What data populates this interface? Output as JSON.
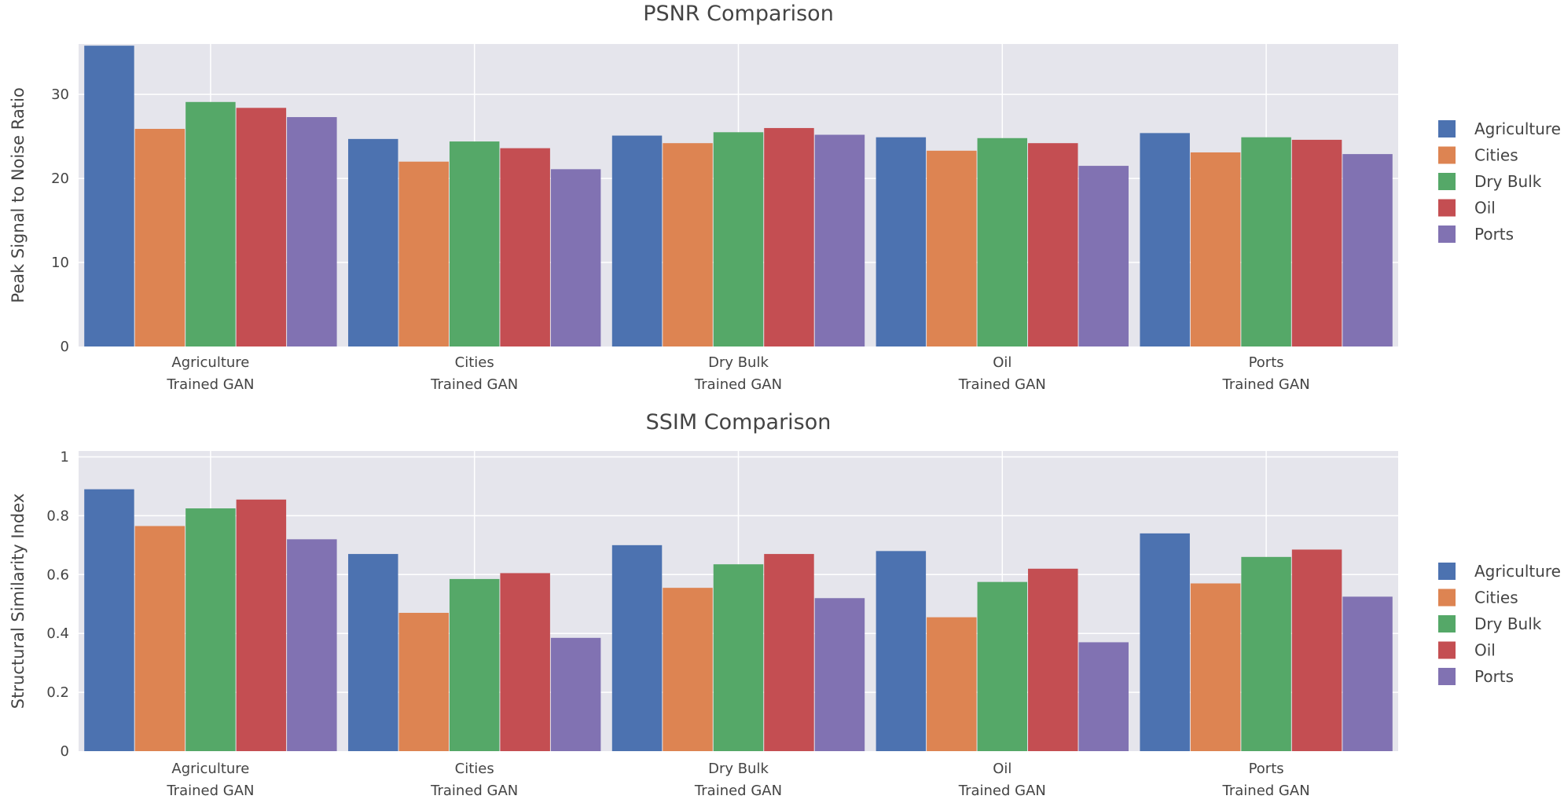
{
  "chart_data": [
    {
      "type": "bar",
      "title": "PSNR Comparison",
      "xlabel": "",
      "ylabel": "Peak Signal to Noise Ratio",
      "ylim": [
        0,
        36
      ],
      "yticks": [
        0,
        10,
        20,
        30
      ],
      "grid": true,
      "legend_position": "right",
      "categories": [
        [
          "Agriculture",
          "Trained GAN"
        ],
        [
          "Cities",
          "Trained GAN"
        ],
        [
          "Dry Bulk",
          "Trained GAN"
        ],
        [
          "Oil",
          "Trained GAN"
        ],
        [
          "Ports",
          "Trained GAN"
        ]
      ],
      "series": [
        {
          "name": "Agriculture",
          "color": "#4c72b0",
          "values": [
            35.8,
            24.7,
            25.1,
            24.9,
            25.4
          ]
        },
        {
          "name": "Cities",
          "color": "#dd8452",
          "values": [
            25.9,
            22.0,
            24.2,
            23.3,
            23.1
          ]
        },
        {
          "name": "Dry Bulk",
          "color": "#55a868",
          "values": [
            29.1,
            24.4,
            25.5,
            24.8,
            24.9
          ]
        },
        {
          "name": "Oil",
          "color": "#c44e52",
          "values": [
            28.4,
            23.6,
            26.0,
            24.2,
            24.6
          ]
        },
        {
          "name": "Ports",
          "color": "#8172b2",
          "values": [
            27.3,
            21.1,
            25.2,
            21.5,
            22.9
          ]
        }
      ]
    },
    {
      "type": "bar",
      "title": "SSIM Comparison",
      "xlabel": "",
      "ylabel": "Structural Similarity Index",
      "ylim": [
        0,
        1.02
      ],
      "yticks": [
        0,
        0.2,
        0.4,
        0.6,
        0.8,
        1
      ],
      "ytick_labels": [
        "0",
        "0.2",
        "0.4",
        "0.6",
        "0.8",
        "1"
      ],
      "grid": true,
      "legend_position": "right",
      "categories": [
        [
          "Agriculture",
          "Trained GAN"
        ],
        [
          "Cities",
          "Trained GAN"
        ],
        [
          "Dry Bulk",
          "Trained GAN"
        ],
        [
          "Oil",
          "Trained GAN"
        ],
        [
          "Ports",
          "Trained GAN"
        ]
      ],
      "series": [
        {
          "name": "Agriculture",
          "color": "#4c72b0",
          "values": [
            0.89,
            0.67,
            0.7,
            0.68,
            0.74
          ]
        },
        {
          "name": "Cities",
          "color": "#dd8452",
          "values": [
            0.765,
            0.47,
            0.555,
            0.455,
            0.57
          ]
        },
        {
          "name": "Dry Bulk",
          "color": "#55a868",
          "values": [
            0.825,
            0.585,
            0.635,
            0.575,
            0.66
          ]
        },
        {
          "name": "Oil",
          "color": "#c44e52",
          "values": [
            0.855,
            0.605,
            0.67,
            0.62,
            0.685
          ]
        },
        {
          "name": "Ports",
          "color": "#8172b2",
          "values": [
            0.72,
            0.385,
            0.52,
            0.37,
            0.525
          ]
        }
      ]
    }
  ]
}
